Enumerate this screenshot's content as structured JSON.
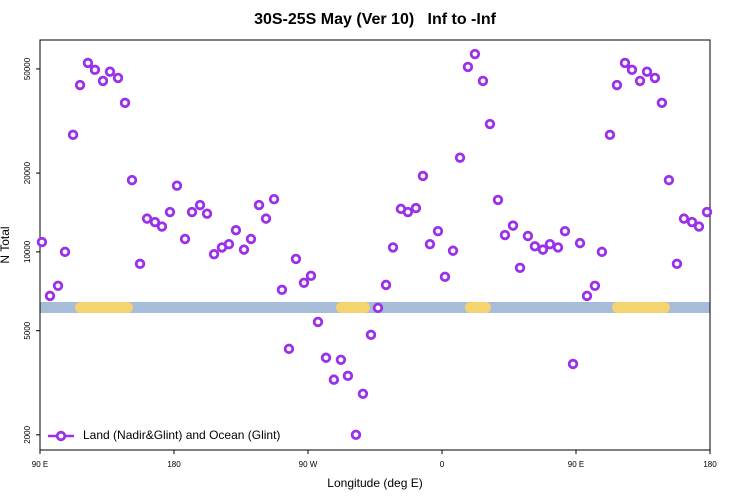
{
  "chart_data": {
    "type": "scatter",
    "title": "30S-25S May (Ver 10)   Inf to -Inf",
    "xlabel": "Longitude (deg E)",
    "ylabel": "N Total",
    "log_y": true,
    "legend": "bottom-left",
    "xlim": [
      90,
      540
    ],
    "ylim": [
      1750,
      64500
    ],
    "xticks": [
      {
        "value": 90,
        "label": "90 E"
      },
      {
        "value": 180,
        "label": "180"
      },
      {
        "value": 270,
        "label": "90 W"
      },
      {
        "value": 360,
        "label": "0"
      },
      {
        "value": 450,
        "label": "90 E"
      },
      {
        "value": 540,
        "label": "180"
      }
    ],
    "yticks": [
      2000,
      5000,
      10000,
      20000,
      50000
    ],
    "x": [
      91.3,
      96.7,
      102.1,
      106.8,
      112.2,
      116.9,
      122.2,
      126.9,
      132.3,
      137.0,
      142.4,
      147.1,
      151.8,
      157.2,
      161.9,
      167.2,
      171.9,
      177.3,
      182.0,
      187.4,
      192.1,
      197.5,
      202.2,
      206.9,
      212.2,
      216.9,
      221.6,
      227.0,
      231.7,
      237.1,
      241.8,
      247.2,
      252.5,
      257.2,
      261.9,
      267.3,
      272.0,
      276.7,
      282.1,
      287.4,
      292.1,
      296.8,
      302.2,
      306.9,
      312.3,
      317.0,
      322.4,
      327.1,
      332.4,
      337.1,
      342.5,
      347.2,
      351.9,
      357.3,
      362.0,
      367.4,
      372.1,
      377.4,
      382.1,
      387.5,
      392.2,
      397.6,
      402.3,
      407.7,
      412.4,
      417.7,
      422.4,
      427.8,
      432.5,
      437.9,
      442.6,
      448.0,
      452.7,
      457.4,
      462.7,
      467.4,
      472.8,
      477.5,
      482.9,
      487.6,
      493.0,
      497.7,
      503.0,
      507.7,
      512.4,
      517.8,
      522.5,
      527.9,
      532.6,
      538.0
    ],
    "series": [
      {
        "name": "Land (Nadir&Glint) and Ocean (Glint)",
        "color": "#9b30e8",
        "values": [
          10900,
          6790,
          7420,
          10000,
          28000,
          43400,
          52700,
          49600,
          45000,
          48800,
          46200,
          37100,
          18800,
          9000,
          13400,
          13000,
          12500,
          14200,
          17900,
          11200,
          14200,
          15100,
          14000,
          9800,
          10400,
          10700,
          12100,
          10200,
          11200,
          15100,
          13400,
          15900,
          7160,
          4260,
          9400,
          7620,
          8100,
          5400,
          3940,
          3250,
          3870,
          3360,
          2000,
          2870,
          4820,
          6110,
          7480,
          10400,
          14600,
          14200,
          14700,
          19500,
          10700,
          12000,
          8030,
          10100,
          22900,
          50900,
          57000,
          45000,
          30800,
          15800,
          11600,
          12600,
          8690,
          11500,
          10500,
          10200,
          10700,
          10400,
          12000,
          3730,
          10800,
          6790,
          7420,
          10000,
          28000,
          43400,
          52700,
          49600,
          45000,
          48800,
          46200,
          37100,
          18800,
          9000,
          13400,
          13000,
          12500,
          14200
        ]
      }
    ]
  }
}
